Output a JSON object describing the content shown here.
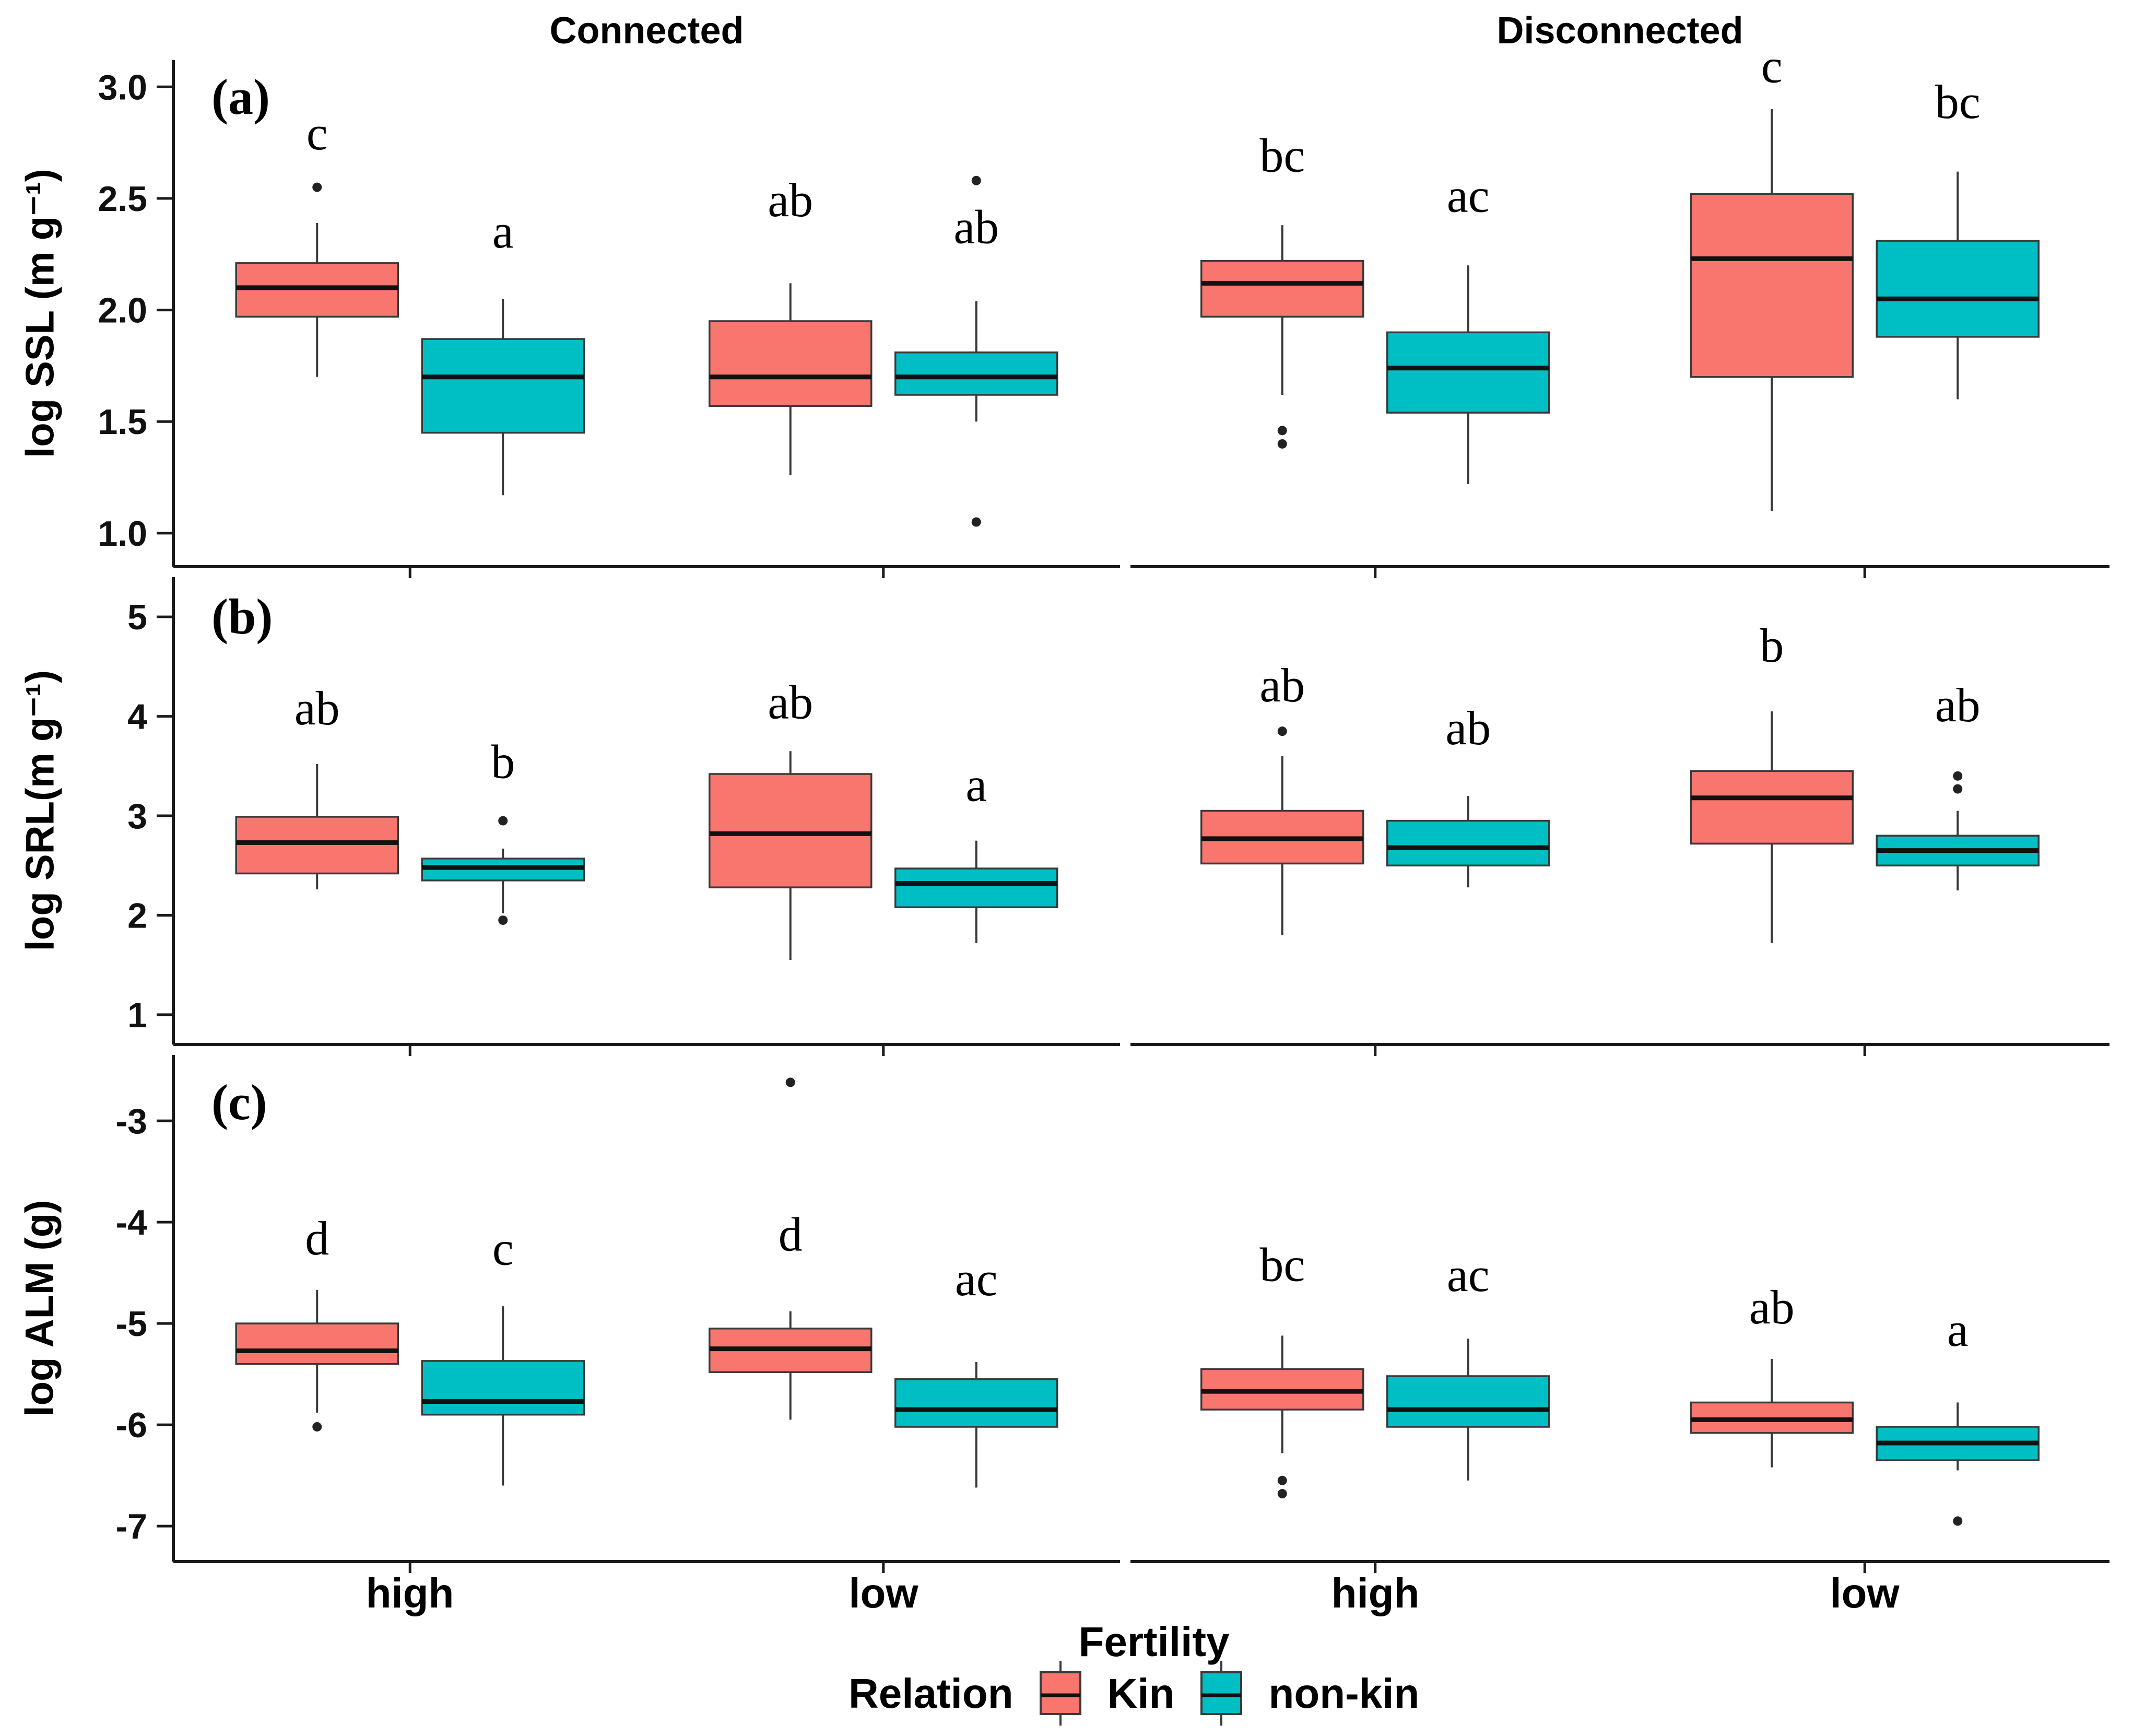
{
  "chart_data": {
    "type": "boxplot",
    "facet_columns": [
      "Connected",
      "Disconnected"
    ],
    "x_categories": [
      "high",
      "low"
    ],
    "x_axis_title": "Fertility",
    "legend": {
      "title": "Relation",
      "entries": [
        {
          "label": "Kin",
          "color": "#F8766D"
        },
        {
          "label": "non-kin",
          "color": "#00BFC4"
        }
      ]
    },
    "panels": [
      {
        "tag": "(a)",
        "ylabel": "log SSL (m g⁻¹)",
        "ylim": [
          0.85,
          3.12
        ],
        "yticks": [
          1.0,
          1.5,
          2.0,
          2.5,
          3.0
        ],
        "ytick_labels": [
          "1.0",
          "1.5",
          "2.0",
          "2.5",
          "3.0"
        ],
        "boxes": [
          {
            "facet": "Connected",
            "x": "high",
            "series": "Kin",
            "letter": "c",
            "letter_y": 2.72,
            "whislo": 1.7,
            "q1": 1.97,
            "median": 2.1,
            "q3": 2.21,
            "whishi": 2.39,
            "outliers": [
              2.55
            ]
          },
          {
            "facet": "Connected",
            "x": "high",
            "series": "non-kin",
            "letter": "a",
            "letter_y": 2.28,
            "whislo": 1.17,
            "q1": 1.45,
            "median": 1.7,
            "q3": 1.87,
            "whishi": 2.05,
            "outliers": []
          },
          {
            "facet": "Connected",
            "x": "low",
            "series": "Kin",
            "letter": "ab",
            "letter_y": 2.42,
            "whislo": 1.26,
            "q1": 1.57,
            "median": 1.7,
            "q3": 1.95,
            "whishi": 2.12,
            "outliers": []
          },
          {
            "facet": "Connected",
            "x": "low",
            "series": "non-kin",
            "letter": "ab",
            "letter_y": 2.3,
            "whislo": 1.5,
            "q1": 1.62,
            "median": 1.7,
            "q3": 1.81,
            "whishi": 2.04,
            "outliers": [
              2.58,
              1.05
            ]
          },
          {
            "facet": "Disconnected",
            "x": "high",
            "series": "Kin",
            "letter": "bc",
            "letter_y": 2.62,
            "whislo": 1.62,
            "q1": 1.97,
            "median": 2.12,
            "q3": 2.22,
            "whishi": 2.38,
            "outliers": [
              1.46,
              1.4
            ]
          },
          {
            "facet": "Disconnected",
            "x": "high",
            "series": "non-kin",
            "letter": "ac",
            "letter_y": 2.44,
            "whislo": 1.22,
            "q1": 1.54,
            "median": 1.74,
            "q3": 1.9,
            "whishi": 2.2,
            "outliers": []
          },
          {
            "facet": "Disconnected",
            "x": "low",
            "series": "Kin",
            "letter": "c",
            "letter_y": 3.02,
            "whislo": 1.1,
            "q1": 1.7,
            "median": 2.23,
            "q3": 2.52,
            "whishi": 2.9,
            "outliers": []
          },
          {
            "facet": "Disconnected",
            "x": "low",
            "series": "non-kin",
            "letter": "bc",
            "letter_y": 2.86,
            "whislo": 1.6,
            "q1": 1.88,
            "median": 2.05,
            "q3": 2.31,
            "whishi": 2.62,
            "outliers": []
          }
        ]
      },
      {
        "tag": "(b)",
        "ylabel": "log SRL(m g⁻¹)",
        "ylim": [
          0.7,
          5.4
        ],
        "yticks": [
          1,
          2,
          3,
          4,
          5
        ],
        "ytick_labels": [
          "1",
          "2",
          "3",
          "4",
          "5"
        ],
        "boxes": [
          {
            "facet": "Connected",
            "x": "high",
            "series": "Kin",
            "letter": "ab",
            "letter_y": 3.92,
            "whislo": 2.26,
            "q1": 2.42,
            "median": 2.73,
            "q3": 2.99,
            "whishi": 3.52,
            "outliers": []
          },
          {
            "facet": "Connected",
            "x": "high",
            "series": "non-kin",
            "letter": "b",
            "letter_y": 3.38,
            "whislo": 2.02,
            "q1": 2.35,
            "median": 2.48,
            "q3": 2.57,
            "whishi": 2.67,
            "outliers": [
              2.95,
              1.95
            ]
          },
          {
            "facet": "Connected",
            "x": "low",
            "series": "Kin",
            "letter": "ab",
            "letter_y": 3.98,
            "whislo": 1.55,
            "q1": 2.28,
            "median": 2.82,
            "q3": 3.42,
            "whishi": 3.65,
            "outliers": []
          },
          {
            "facet": "Connected",
            "x": "low",
            "series": "non-kin",
            "letter": "a",
            "letter_y": 3.15,
            "whislo": 1.72,
            "q1": 2.08,
            "median": 2.32,
            "q3": 2.47,
            "whishi": 2.75,
            "outliers": []
          },
          {
            "facet": "Disconnected",
            "x": "high",
            "series": "Kin",
            "letter": "ab",
            "letter_y": 4.15,
            "whislo": 1.8,
            "q1": 2.52,
            "median": 2.77,
            "q3": 3.05,
            "whishi": 3.6,
            "outliers": [
              3.85
            ]
          },
          {
            "facet": "Disconnected",
            "x": "high",
            "series": "non-kin",
            "letter": "ab",
            "letter_y": 3.72,
            "whislo": 2.28,
            "q1": 2.5,
            "median": 2.68,
            "q3": 2.95,
            "whishi": 3.2,
            "outliers": []
          },
          {
            "facet": "Disconnected",
            "x": "low",
            "series": "Kin",
            "letter": "b",
            "letter_y": 4.55,
            "whislo": 1.72,
            "q1": 2.72,
            "median": 3.18,
            "q3": 3.45,
            "whishi": 4.05,
            "outliers": []
          },
          {
            "facet": "Disconnected",
            "x": "low",
            "series": "non-kin",
            "letter": "ab",
            "letter_y": 3.95,
            "whislo": 2.25,
            "q1": 2.5,
            "median": 2.65,
            "q3": 2.8,
            "whishi": 3.05,
            "outliers": [
              3.4,
              3.27
            ]
          }
        ]
      },
      {
        "tag": "(c)",
        "ylabel": "log ALM (g)",
        "ylim": [
          -7.35,
          -2.35
        ],
        "yticks": [
          -7,
          -6,
          -5,
          -4,
          -3
        ],
        "ytick_labels": [
          "-7",
          "-6",
          "-5",
          "-4",
          "-3"
        ],
        "boxes": [
          {
            "facet": "Connected",
            "x": "high",
            "series": "Kin",
            "letter": "d",
            "letter_y": -4.32,
            "whislo": -5.88,
            "q1": -5.4,
            "median": -5.27,
            "q3": -5.0,
            "whishi": -4.67,
            "outliers": [
              -6.02
            ]
          },
          {
            "facet": "Connected",
            "x": "high",
            "series": "non-kin",
            "letter": "c",
            "letter_y": -4.42,
            "whislo": -6.6,
            "q1": -5.9,
            "median": -5.77,
            "q3": -5.37,
            "whishi": -4.83,
            "outliers": []
          },
          {
            "facet": "Connected",
            "x": "low",
            "series": "Kin",
            "letter": "d",
            "letter_y": -4.28,
            "whislo": -5.95,
            "q1": -5.48,
            "median": -5.25,
            "q3": -5.05,
            "whishi": -4.88,
            "outliers": [
              -2.62
            ]
          },
          {
            "facet": "Connected",
            "x": "low",
            "series": "non-kin",
            "letter": "ac",
            "letter_y": -4.72,
            "whislo": -6.62,
            "q1": -6.02,
            "median": -5.85,
            "q3": -5.55,
            "whishi": -5.38,
            "outliers": []
          },
          {
            "facet": "Disconnected",
            "x": "high",
            "series": "Kin",
            "letter": "bc",
            "letter_y": -4.58,
            "whislo": -6.28,
            "q1": -5.85,
            "median": -5.67,
            "q3": -5.45,
            "whishi": -5.12,
            "outliers": [
              -6.55,
              -6.68
            ]
          },
          {
            "facet": "Disconnected",
            "x": "high",
            "series": "non-kin",
            "letter": "ac",
            "letter_y": -4.68,
            "whislo": -6.55,
            "q1": -6.02,
            "median": -5.85,
            "q3": -5.52,
            "whishi": -5.15,
            "outliers": []
          },
          {
            "facet": "Disconnected",
            "x": "low",
            "series": "Kin",
            "letter": "ab",
            "letter_y": -5.0,
            "whislo": -6.42,
            "q1": -6.08,
            "median": -5.95,
            "q3": -5.78,
            "whishi": -5.35,
            "outliers": []
          },
          {
            "facet": "Disconnected",
            "x": "low",
            "series": "non-kin",
            "letter": "a",
            "letter_y": -5.22,
            "whislo": -6.45,
            "q1": -6.35,
            "median": -6.18,
            "q3": -6.02,
            "whishi": -5.78,
            "outliers": [
              -6.95
            ]
          }
        ]
      }
    ]
  }
}
